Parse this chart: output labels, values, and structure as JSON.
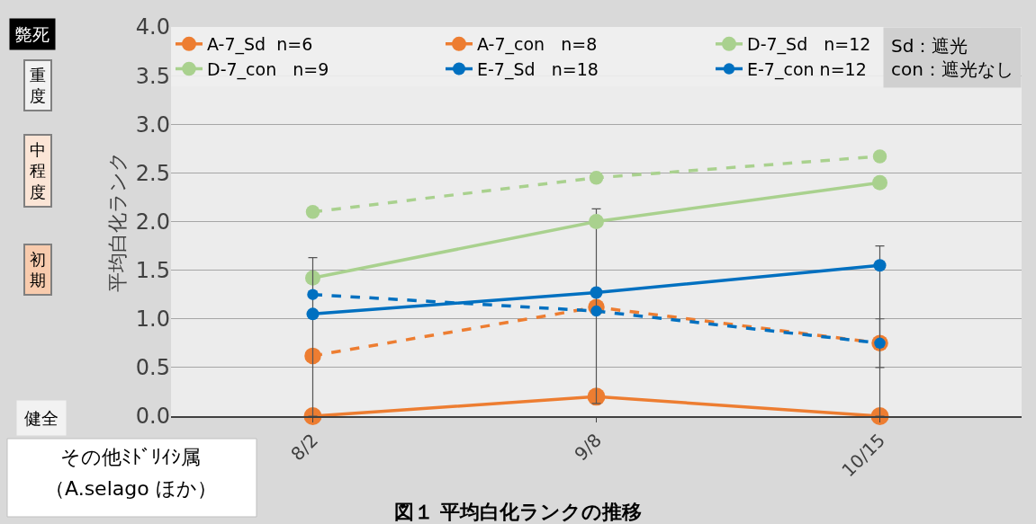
{
  "chart_data": {
    "type": "line",
    "title": "図１ 平均白化ランクの推移",
    "ylabel": "平均白化ランク",
    "categories": [
      "8/2",
      "9/8",
      "10/15"
    ],
    "series": [
      {
        "name": "A-7_Sd  n=6",
        "color": "#ed7d31",
        "line_style": "solid",
        "values": [
          0,
          0.2,
          0
        ]
      },
      {
        "name": "A-7_con   n=8",
        "color": "#ed7d31",
        "line_style": "dashed",
        "values": [
          0.62,
          1.12,
          0.75
        ],
        "errors": [
          null,
          null,
          [
            0.5,
            1.0
          ]
        ]
      },
      {
        "name": "D-7_Sd   n=12",
        "color": "#a9d18e",
        "line_style": "solid",
        "values": [
          1.42,
          2.0,
          2.4
        ],
        "errors": [
          null,
          [
            0.13,
            2.13
          ],
          null
        ]
      },
      {
        "name": "D-7_con   n=9",
        "color": "#a9d18e",
        "line_style": "dashed",
        "values": [
          2.1,
          2.45,
          2.67
        ]
      },
      {
        "name": "E-7_Sd   n=18",
        "color": "#0070c0",
        "line_style": "solid",
        "values": [
          1.05,
          1.27,
          1.55
        ],
        "errors": [
          [
            0,
            1.63
          ],
          null,
          [
            0,
            1.75
          ]
        ]
      },
      {
        "name": "E-7_con n=12",
        "color": "#0070c0",
        "line_style": "dashed",
        "values": [
          1.25,
          1.08,
          0.75
        ]
      }
    ],
    "ylim": [
      0,
      4.0
    ],
    "yticks": [
      {
        "value": 0,
        "label": "0.0"
      },
      {
        "value": 0.5,
        "label": "0.5"
      },
      {
        "value": 1,
        "label": "1.0"
      },
      {
        "value": 1.5,
        "label": "1.5"
      },
      {
        "value": 2,
        "label": "2.0"
      },
      {
        "value": 2.5,
        "label": "2.5"
      },
      {
        "value": 3,
        "label": "3.0"
      },
      {
        "value": 3.5,
        "label": "3.5"
      },
      {
        "value": 4,
        "label": "4.0"
      }
    ],
    "grid": "y",
    "legend": "top",
    "marker": "circle",
    "annotations": [
      "Sd：遮光\ncon：遮光なし",
      "斃死",
      "重度",
      "中程度",
      "初期",
      "健全",
      "その他ﾐﾄﾞﾘｲｼ属",
      "（A.selago ほか）"
    ]
  }
}
